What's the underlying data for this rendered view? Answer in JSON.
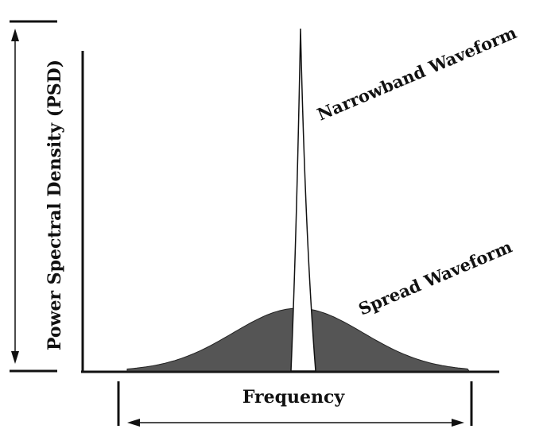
{
  "labels": {
    "y_axis": "Power Spectral Density (PSD)",
    "x_axis": "Frequency",
    "narrowband": "Narrowband Waveform",
    "spread": "Spread Waveform"
  },
  "colors": {
    "spread_fill": "#555555",
    "narrowband_fill": "#ffffff",
    "line": "#111111"
  }
}
